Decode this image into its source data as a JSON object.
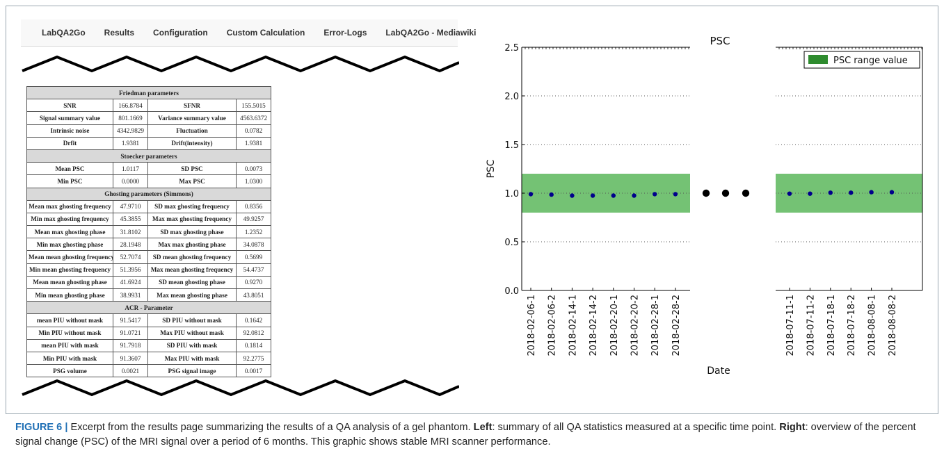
{
  "navbar": {
    "items": [
      "LabQA2Go",
      "Results",
      "Configuration",
      "Custom Calculation",
      "Error-Logs",
      "LabQA2Go - Mediawiki"
    ]
  },
  "table": {
    "sections": [
      {
        "title": "Friedman parameters",
        "rows": [
          [
            "SNR",
            "166.8784",
            "SFNR",
            "155.5015"
          ],
          [
            "Signal summary value",
            "801.1669",
            "Variance summary value",
            "4563.6372"
          ],
          [
            "Intrinsic noise",
            "4342.9829",
            "Fluctuation",
            "0.0782"
          ],
          [
            "Drfit",
            "1.9381",
            "Drift(intensity)",
            "1.9381"
          ]
        ]
      },
      {
        "title": "Stoecker parameters",
        "rows": [
          [
            "Mean PSC",
            "1.0117",
            "SD PSC",
            "0.0073"
          ],
          [
            "Min PSC",
            "0.0000",
            "Max PSC",
            "1.0300"
          ]
        ]
      },
      {
        "title": "Ghosting parameters (Simmons)",
        "rows": [
          [
            "Mean max ghosting frequency",
            "47.9710",
            "SD max ghosting frequency",
            "0.8356"
          ],
          [
            "Min max ghosting frequency",
            "45.3855",
            "Max max ghosting frequency",
            "49.9257"
          ],
          [
            "Mean max ghosting phase",
            "31.8102",
            "SD max ghosting phase",
            "1.2352"
          ],
          [
            "Min max ghosting phase",
            "28.1948",
            "Max max ghosting phase",
            "34.0878"
          ],
          [
            "Mean mean ghosting frequency",
            "52.7074",
            "SD mean ghosting frequency",
            "0.5699"
          ],
          [
            "Min mean ghosting frequency",
            "51.3956",
            "Max mean ghosting frequency",
            "54.4737"
          ],
          [
            "Mean mean ghosting phase",
            "41.6924",
            "SD mean ghosting phase",
            "0.9270"
          ],
          [
            "Min mean ghosting phase",
            "38.9931",
            "Max mean ghosting phase",
            "43.8051"
          ]
        ]
      },
      {
        "title": "ACR - Parameter",
        "rows": [
          [
            "mean PIU without mask",
            "91.5417",
            "SD PIU without mask",
            "0.1642"
          ],
          [
            "Min PIU without mask",
            "91.0721",
            "Max PIU without mask",
            "92.0812"
          ],
          [
            "mean PIU with mask",
            "91.7918",
            "SD PIU with mask",
            "0.1814"
          ],
          [
            "Min PIU with mask",
            "91.3607",
            "Max PIU with mask",
            "92.2775"
          ],
          [
            "PSG volume",
            "0.0021",
            "PSG signal image",
            "0.0017"
          ]
        ]
      }
    ]
  },
  "chart_data": {
    "type": "scatter",
    "title": "PSC",
    "xlabel": "Date",
    "ylabel": "PSC",
    "ylim": [
      0.0,
      2.5
    ],
    "yticks": [
      "0.0",
      "0.5",
      "1.0",
      "1.5",
      "2.0",
      "2.5"
    ],
    "grid": "horizontal dotted",
    "legend": {
      "position": "top-right",
      "label": "PSC range value",
      "color": "#2e8b2e"
    },
    "band": {
      "low": 0.8,
      "high": 1.2,
      "color": "#6dbf6d"
    },
    "point_color": "#00008b",
    "panels": [
      {
        "x": [
          "2018-02-06-1",
          "2018-02-06-2",
          "2018-02-14-1",
          "2018-02-14-2",
          "2018-02-20-1",
          "2018-02-20-2",
          "2018-02-28-1",
          "2018-02-28-2"
        ],
        "y": [
          0.99,
          0.985,
          0.975,
          0.975,
          0.975,
          0.975,
          0.99,
          0.99
        ]
      },
      {
        "x": [
          "2018-07-11-1",
          "2018-07-11-2",
          "2018-07-18-1",
          "2018-07-18-2",
          "2018-08-08-1",
          "2018-08-08-2"
        ],
        "y": [
          0.995,
          0.995,
          1.005,
          1.005,
          1.01,
          1.01
        ]
      }
    ]
  },
  "caption": {
    "label": "FIGURE 6 |",
    "text1": " Excerpt from the results page summarizing the results of a QA analysis of a gel phantom. ",
    "left_label": "Left",
    "text2": ": summary of all QA statistics measured at a specific time point. ",
    "right_label": "Right",
    "text3": ": overview of the percent signal change (PSC) of the MRI signal over a period of 6 months. This graphic shows stable MRI scanner performance."
  }
}
